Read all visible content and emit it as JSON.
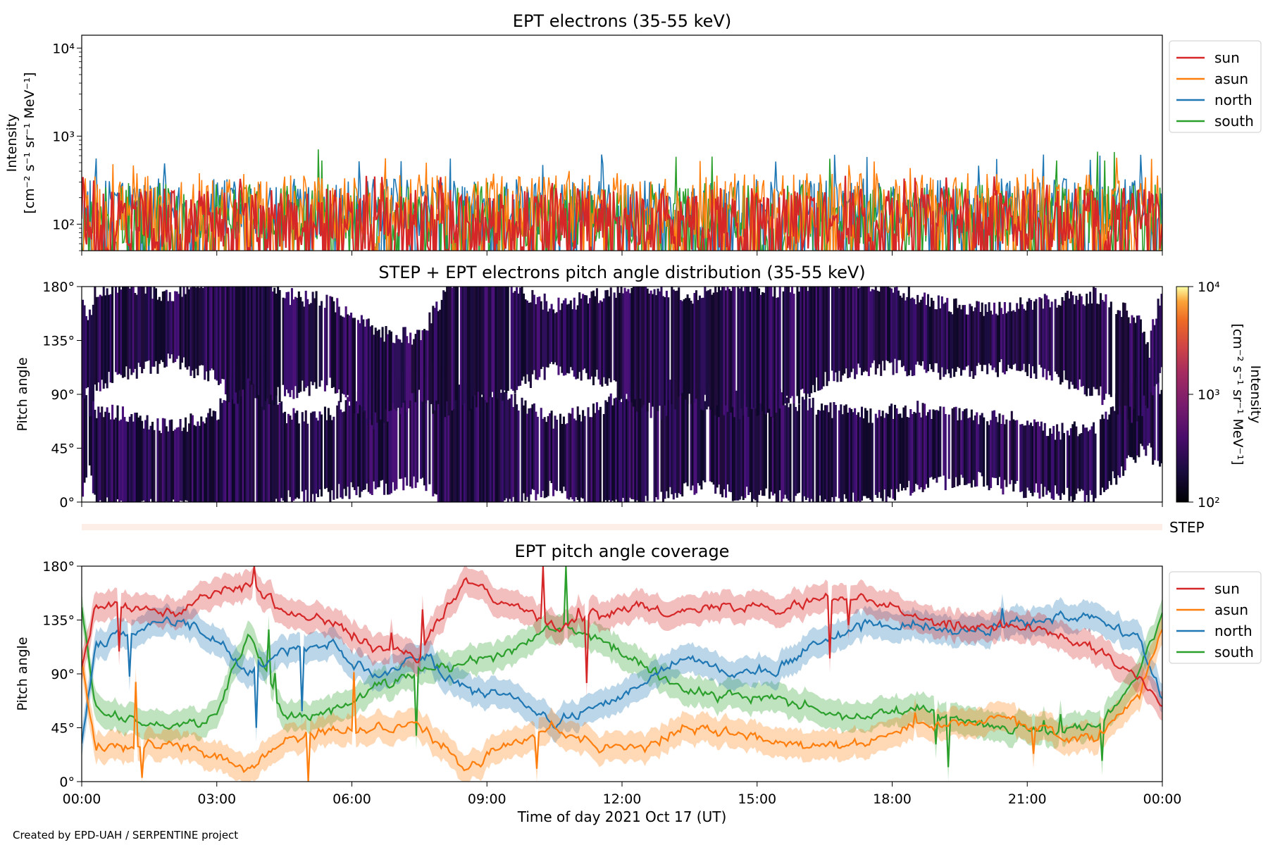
{
  "footer": {
    "credit": "Created by EPD-UAH / SERPENTINE project"
  },
  "colors": {
    "sun": "#d62728",
    "asun": "#ff7f0e",
    "north": "#1f77b4",
    "south": "#2ca02c"
  },
  "chart_data": [
    {
      "type": "line",
      "title": "EPT electrons (35-55 keV)",
      "ylabel": "Intensity",
      "yunits": "[cm⁻² s⁻¹ sr⁻¹ MeV⁻¹]",
      "yscale": "log",
      "ylim": [
        50,
        14000
      ],
      "yticks": [
        {
          "value": 100,
          "label": "10²"
        },
        {
          "value": 1000,
          "label": "10³"
        },
        {
          "value": 10000,
          "label": "10⁴"
        }
      ],
      "xlim_hours": [
        0,
        24
      ],
      "legend": {
        "placement": "upper right outside",
        "entries": [
          "sun",
          "asun",
          "north",
          "south"
        ]
      },
      "series": [
        {
          "name": "north",
          "color": "#1f77b4",
          "typical_range": [
            70,
            330
          ],
          "peak": 620
        },
        {
          "name": "south",
          "color": "#2ca02c",
          "typical_range": [
            55,
            300
          ],
          "peak": 730
        },
        {
          "name": "asun",
          "color": "#ff7f0e",
          "typical_range": [
            60,
            380
          ],
          "peak": 570
        },
        {
          "name": "sun",
          "color": "#d62728",
          "typical_range": [
            50,
            260
          ],
          "peak": 380
        }
      ]
    },
    {
      "type": "heatmap",
      "title": "STEP + EPT electrons pitch angle distribution (35-55 keV)",
      "ylabel": "Pitch angle",
      "yticks": [
        "0°",
        "45°",
        "90°",
        "135°",
        "180°"
      ],
      "ylim": [
        0,
        180
      ],
      "colorbar": {
        "label": "Intensity",
        "units": "[cm⁻² s⁻¹ sr⁻¹ MeV⁻¹]",
        "scale": "log",
        "ticks": [
          "10²",
          "10³",
          "10⁴"
        ],
        "range": [
          100,
          10000
        ],
        "colormap": "inferno"
      }
    },
    {
      "type": "bar",
      "title": "",
      "label": "STEP"
    },
    {
      "type": "line",
      "title": "EPT pitch angle coverage",
      "ylabel": "Pitch angle",
      "ylim": [
        0,
        180
      ],
      "yticks": [
        "0°",
        "45°",
        "90°",
        "135°",
        "180°"
      ],
      "xlabel": "Time of day 2021 Oct 17 (UT)",
      "xticks": [
        "00:00",
        "03:00",
        "06:00",
        "09:00",
        "12:00",
        "15:00",
        "18:00",
        "21:00",
        "00:00"
      ],
      "legend": {
        "placement": "upper right outside",
        "entries": [
          "sun",
          "asun",
          "north",
          "south"
        ]
      },
      "x_hours": [
        0,
        0.3,
        1,
        2,
        3,
        3.7,
        4.5,
        5.5,
        6.5,
        7.5,
        8.5,
        9.5,
        10.5,
        11.5,
        12.5,
        13.5,
        14.5,
        15.5,
        16.5,
        17.5,
        18.5,
        19.5,
        20.5,
        21.5,
        22.5,
        23.5,
        24
      ],
      "series": [
        {
          "name": "sun",
          "color": "#d62728",
          "values": [
            95,
            145,
            150,
            140,
            160,
            165,
            140,
            135,
            110,
            105,
            170,
            150,
            130,
            140,
            150,
            140,
            150,
            145,
            155,
            150,
            140,
            130,
            130,
            125,
            110,
            85,
            60
          ]
        },
        {
          "name": "asun",
          "color": "#ff7f0e",
          "values": [
            100,
            30,
            28,
            30,
            20,
            10,
            35,
            40,
            45,
            48,
            12,
            30,
            45,
            30,
            30,
            45,
            40,
            35,
            30,
            35,
            45,
            50,
            55,
            40,
            35,
            75,
            130
          ]
        },
        {
          "name": "north",
          "color": "#1f77b4",
          "values": [
            30,
            115,
            125,
            135,
            120,
            90,
            110,
            115,
            85,
            105,
            80,
            70,
            50,
            60,
            85,
            105,
            90,
            95,
            120,
            130,
            130,
            125,
            130,
            135,
            140,
            120,
            70
          ]
        },
        {
          "name": "south",
          "color": "#2ca02c",
          "values": [
            145,
            60,
            55,
            45,
            55,
            125,
            55,
            55,
            80,
            90,
            100,
            110,
            130,
            120,
            95,
            75,
            70,
            70,
            60,
            55,
            60,
            55,
            45,
            40,
            45,
            90,
            140
          ]
        }
      ]
    }
  ]
}
